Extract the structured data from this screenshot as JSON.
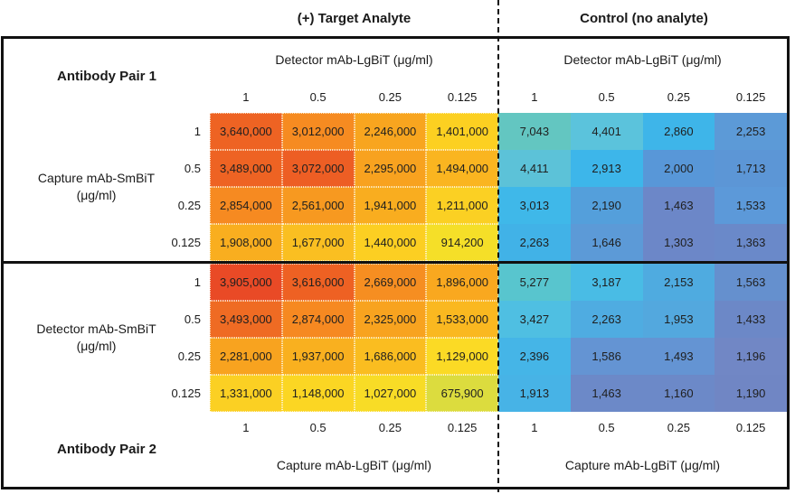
{
  "titles": {
    "target": "(+) Target Analyte",
    "control": "Control (no analyte)"
  },
  "pair1": {
    "label": "Antibody Pair 1",
    "row_axis_line1": "Capture mAb-SmBiT",
    "row_axis_line2": "(μg/ml)",
    "row_ticks": [
      "1",
      "0.5",
      "0.25",
      "0.125"
    ]
  },
  "pair2": {
    "label": "Antibody Pair 2",
    "row_axis_line1": "Detector mAb-SmBiT",
    "row_axis_line2": "(μg/ml)",
    "row_ticks": [
      "1",
      "0.5",
      "0.25",
      "0.125"
    ]
  },
  "top_axis": {
    "left_label": "Detector mAb-LgBiT (μg/ml)",
    "right_label": "Detector mAb-LgBiT (μg/ml)",
    "ticks": [
      "1",
      "0.5",
      "0.25",
      "0.125"
    ]
  },
  "bottom_axis": {
    "left_label": "Capture mAb-LgBiT (μg/ml)",
    "right_label": "Capture mAb-LgBiT (μg/ml)",
    "ticks": [
      "1",
      "0.5",
      "0.25",
      "0.125"
    ]
  },
  "heatmaps": {
    "pair1_target": {
      "cells": [
        [
          "3,640,000",
          "3,012,000",
          "2,246,000",
          "1,401,000"
        ],
        [
          "3,489,000",
          "3,072,000",
          "2,295,000",
          "1,494,000"
        ],
        [
          "2,854,000",
          "2,561,000",
          "1,941,000",
          "1,211,000"
        ],
        [
          "1,908,000",
          "1,677,000",
          "1,440,000",
          "914,200"
        ]
      ],
      "colors": [
        [
          "#EE6323",
          "#F68B21",
          "#F8A51F",
          "#FCD021"
        ],
        [
          "#EE6323",
          "#ED5E24",
          "#F8A21F",
          "#FAB520"
        ],
        [
          "#F68A21",
          "#F79920",
          "#F9AD1F",
          "#FBD023"
        ],
        [
          "#F9AE1F",
          "#FABF21",
          "#FCCF22",
          "#F5DF28"
        ]
      ]
    },
    "pair1_control": {
      "cells": [
        [
          "7,043",
          "4,401",
          "2,860",
          "2,253"
        ],
        [
          "4,411",
          "2,913",
          "2,000",
          "1,713"
        ],
        [
          "3,013",
          "2,190",
          "1,463",
          "1,533"
        ],
        [
          "2,263",
          "1,646",
          "1,303",
          "1,363"
        ]
      ],
      "colors": [
        [
          "#63C6C1",
          "#5BC3DC",
          "#3EB5E9",
          "#5C9AD7"
        ],
        [
          "#5CC2D8",
          "#3DB6EA",
          "#5897D8",
          "#5C96D6"
        ],
        [
          "#3FB8E9",
          "#549FDB",
          "#6C87C8",
          "#5C99D9"
        ],
        [
          "#41B2E7",
          "#5C9AD7",
          "#6C87C8",
          "#6A89C9"
        ]
      ]
    },
    "pair2_target": {
      "cells": [
        [
          "3,905,000",
          "3,616,000",
          "2,669,000",
          "1,896,000"
        ],
        [
          "3,493,000",
          "2,874,000",
          "2,325,000",
          "1,533,000"
        ],
        [
          "2,281,000",
          "1,937,000",
          "1,686,000",
          "1,129,000"
        ],
        [
          "1,331,000",
          "1,148,000",
          "1,027,000",
          "675,900"
        ]
      ],
      "colors": [
        [
          "#E94A26",
          "#EE6123",
          "#F68E21",
          "#F9A81F"
        ],
        [
          "#EF6B23",
          "#F68921",
          "#F8A31F",
          "#FAB820"
        ],
        [
          "#F8A31F",
          "#F9B01F",
          "#FABD20",
          "#FBDA25"
        ],
        [
          "#FBD023",
          "#FBD623",
          "#F8DC26",
          "#DCDC3E"
        ]
      ]
    },
    "pair2_control": {
      "cells": [
        [
          "5,277",
          "3,187",
          "2,153",
          "1,563"
        ],
        [
          "3,427",
          "2,263",
          "1,953",
          "1,433"
        ],
        [
          "2,396",
          "1,586",
          "1,493",
          "1,196"
        ],
        [
          "1,913",
          "1,463",
          "1,160",
          "1,190"
        ]
      ],
      "colors": [
        [
          "#58C5CE",
          "#49BCE5",
          "#4FABE0",
          "#6590CE"
        ],
        [
          "#4FBFE2",
          "#4FACE1",
          "#53A8DE",
          "#6C88C7"
        ],
        [
          "#45B5E7",
          "#6494D3",
          "#6494D3",
          "#7187C5"
        ],
        [
          "#47B3E6",
          "#6C89C8",
          "#6C89C8",
          "#7086C4"
        ]
      ]
    }
  },
  "chart_data": {
    "type": "heatmap",
    "columns": [
      1,
      0.5,
      0.25,
      0.125
    ],
    "rows": [
      1,
      0.5,
      0.25,
      0.125
    ],
    "column_unit": "μg/ml",
    "row_unit": "μg/ml",
    "blocks": [
      {
        "name": "Antibody Pair 1 — (+) Target Analyte",
        "row_axis": "Capture mAb-SmBiT (μg/ml)",
        "col_axis": "Detector mAb-LgBiT (μg/ml)",
        "values": [
          [
            3640000,
            3012000,
            2246000,
            1401000
          ],
          [
            3489000,
            3072000,
            2295000,
            1494000
          ],
          [
            2854000,
            2561000,
            1941000,
            1211000
          ],
          [
            1908000,
            1677000,
            1440000,
            914200
          ]
        ]
      },
      {
        "name": "Antibody Pair 1 — Control (no analyte)",
        "row_axis": "Capture mAb-SmBiT (μg/ml)",
        "col_axis": "Detector mAb-LgBiT (μg/ml)",
        "values": [
          [
            7043,
            4401,
            2860,
            2253
          ],
          [
            4411,
            2913,
            2000,
            1713
          ],
          [
            3013,
            2190,
            1463,
            1533
          ],
          [
            2263,
            1646,
            1303,
            1363
          ]
        ]
      },
      {
        "name": "Antibody Pair 2 — (+) Target Analyte",
        "row_axis": "Detector mAb-SmBiT (μg/ml)",
        "col_axis": "Capture mAb-LgBiT (μg/ml)",
        "values": [
          [
            3905000,
            3616000,
            2669000,
            1896000
          ],
          [
            3493000,
            2874000,
            2325000,
            1533000
          ],
          [
            2281000,
            1937000,
            1686000,
            1129000
          ],
          [
            1331000,
            1148000,
            1027000,
            675900
          ]
        ]
      },
      {
        "name": "Antibody Pair 2 — Control (no analyte)",
        "row_axis": "Detector mAb-SmBiT (μg/ml)",
        "col_axis": "Capture mAb-LgBiT (μg/ml)",
        "values": [
          [
            5277,
            3187,
            2153,
            1563
          ],
          [
            3427,
            2263,
            1953,
            1433
          ],
          [
            2396,
            1586,
            1493,
            1196
          ],
          [
            1913,
            1463,
            1160,
            1190
          ]
        ]
      }
    ],
    "layout": "2x2 panel grid; warm (red-orange-yellow) color scale for target-analyte signal, cool (teal-blue) scale for control; dashed vertical divider between target and control halves"
  }
}
